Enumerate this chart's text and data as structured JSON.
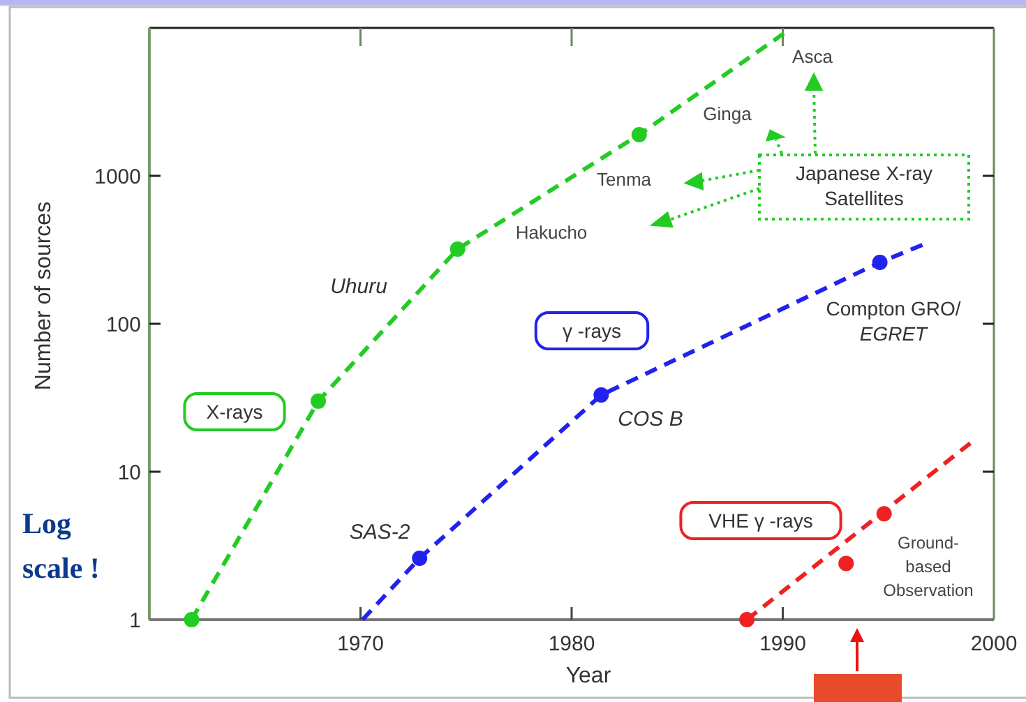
{
  "chart_data": {
    "type": "line",
    "xlabel": "Year",
    "ylabel": "Number of sources",
    "log": "y",
    "xlim": [
      1960,
      2000
    ],
    "ylim": [
      1,
      10000
    ],
    "xticks": [
      1970,
      1980,
      1990,
      2000
    ],
    "yticks": [
      1,
      10,
      100,
      1000
    ],
    "line_style": "dashed",
    "series": [
      {
        "name": "X-rays",
        "marker": "none",
        "color": "#22cc22",
        "x": [
          1962,
          1968,
          1974.6,
          1983.2,
          1990.2
        ],
        "values": [
          1,
          30,
          320,
          1900,
          9500
        ]
      },
      {
        "type": "scatter",
        "marker": "circle",
        "color": "#22cc22",
        "x": [
          1962,
          1968,
          1974.6,
          1983.2
        ],
        "values": [
          1,
          30,
          320,
          1900
        ]
      },
      {
        "name": "γ -rays",
        "marker": "none",
        "color": "#2222ee",
        "x": [
          1970.1,
          1972.8,
          1981.4,
          1994.6,
          1996.8
        ],
        "values": [
          1,
          2.6,
          33,
          260,
          350
        ]
      },
      {
        "type": "scatter",
        "marker": "circle",
        "color": "#2222ee",
        "x": [
          1972.8,
          1981.4,
          1994.6
        ],
        "values": [
          2.6,
          33,
          260
        ]
      },
      {
        "name": "VHE γ -rays",
        "marker": "none",
        "color": "#ee2222",
        "x": [
          1988.3,
          1999.1
        ],
        "values": [
          1,
          16.5
        ]
      },
      {
        "type": "scatter",
        "marker": "circle",
        "color": "#ee2222",
        "x": [
          1988.3,
          1993,
          1994.8
        ],
        "values": [
          1,
          2.4,
          5.2
        ]
      }
    ],
    "annotations": [
      "Uhuru",
      "Hakucho",
      "Tenma",
      "Ginga",
      "Asca",
      "Japanese X-ray\nSatellites",
      "SAS-2",
      "COS B",
      "Compton GRO/\nEGRET",
      "Ground-\nbased\nObservation",
      "Log\nscale !"
    ]
  }
}
